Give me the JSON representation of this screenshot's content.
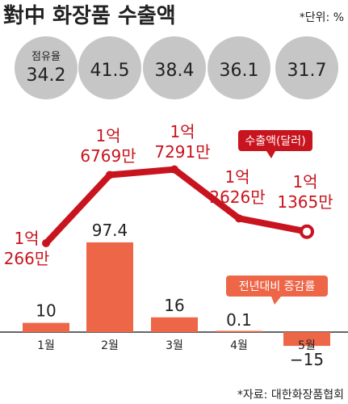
{
  "header": {
    "title": "對中 화장품 수출액",
    "unit_note": "*단위: %"
  },
  "share": {
    "label": "점유율"
  },
  "legend": {
    "line_label": "수출액(달러)",
    "bar_label": "전년대비 증감률"
  },
  "footer": {
    "source": "*자료: 대한화장품협회"
  },
  "colors": {
    "line": "#c8141e",
    "bar": "#ee6648",
    "circle": "#c6c6c6",
    "text": "#222222"
  },
  "chart_data": {
    "type": "bar+line",
    "categories": [
      "1월",
      "2월",
      "3월",
      "4월",
      "5월"
    ],
    "share_values": [
      34.2,
      41.5,
      38.4,
      36.1,
      31.7
    ],
    "export_values": [
      102660000,
      167690000,
      172910000,
      126260000,
      113650000
    ],
    "export_labels": [
      [
        "1억",
        "266만"
      ],
      [
        "1억",
        "6769만"
      ],
      [
        "1억",
        "7291만"
      ],
      [
        "1억",
        "2626만"
      ],
      [
        "1억",
        "1365만"
      ]
    ],
    "growth_values": [
      10,
      97.4,
      16,
      0.1,
      -15
    ],
    "growth_labels": [
      "10",
      "97.4",
      "16",
      "0.1",
      "−15"
    ]
  }
}
